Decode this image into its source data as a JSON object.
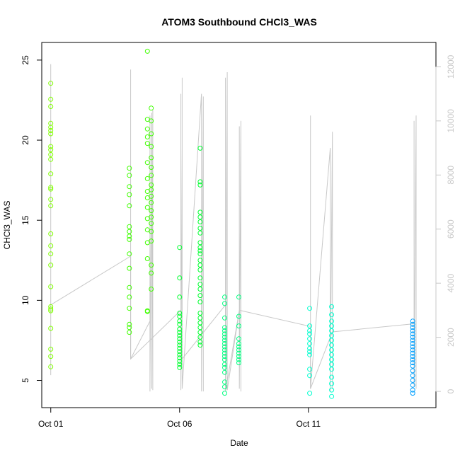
{
  "chart_data": {
    "type": "scatter",
    "title": "ATOM3 Southbound CHCl3_WAS",
    "xlabel": "Date",
    "ylabel": "CHCl3_WAS",
    "x_ticks": [
      {
        "day": 1,
        "label": "Oct 01"
      },
      {
        "day": 6,
        "label": "Oct 06"
      },
      {
        "day": 11,
        "label": "Oct 11"
      }
    ],
    "xlim_day": [
      0.65,
      15.95
    ],
    "ylim": [
      3.3,
      26.1
    ],
    "y_ticks": [
      5,
      10,
      15,
      20,
      25
    ],
    "y2_label": "",
    "y2_ticks": [
      0,
      2000,
      4000,
      6000,
      8000,
      10000,
      12000
    ],
    "y2lim": [
      -600,
      12900
    ],
    "y2_color": "#c8c8c8",
    "color_note": "points colored by date, yellow-green to blue",
    "series": [
      {
        "color": "#80ff00",
        "points": [
          [
            1.0,
            23.55
          ],
          [
            1.0,
            22.55
          ],
          [
            1.0,
            22.1
          ],
          [
            1.0,
            21.05
          ],
          [
            1.0,
            20.8
          ],
          [
            1.0,
            20.6
          ],
          [
            1.0,
            20.4
          ],
          [
            1.0,
            19.6
          ],
          [
            1.0,
            19.4
          ],
          [
            1.0,
            19.1
          ],
          [
            1.0,
            18.8
          ],
          [
            1.0,
            17.9
          ],
          [
            1.0,
            17.05
          ],
          [
            1.0,
            16.95
          ],
          [
            1.0,
            16.3
          ],
          [
            1.0,
            15.9
          ],
          [
            1.0,
            14.15
          ],
          [
            1.0,
            13.4
          ],
          [
            1.0,
            12.9
          ],
          [
            1.0,
            12.2
          ],
          [
            1.0,
            10.85
          ],
          [
            1.0,
            9.6
          ],
          [
            1.0,
            9.45
          ],
          [
            1.0,
            9.35
          ],
          [
            1.0,
            8.25
          ],
          [
            1.0,
            6.95
          ],
          [
            1.0,
            6.5
          ],
          [
            1.0,
            5.85
          ]
        ],
        "path": [
          [
            1.0,
            600
          ],
          [
            1.0,
            11000
          ],
          [
            1.0,
            2400
          ],
          [
            1.0,
            9000
          ],
          [
            1.0,
            3200
          ],
          [
            1.0,
            5000
          ],
          [
            1.0,
            11800
          ],
          [
            1.0,
            5400
          ],
          [
            1.0,
            12100
          ],
          [
            1.0,
            3800
          ],
          [
            1.0,
            800
          ],
          [
            1.0,
            2200
          ]
        ]
      },
      {
        "color": "#40ff00",
        "points": [
          [
            4.05,
            18.25
          ],
          [
            4.05,
            17.8
          ],
          [
            4.05,
            17.1
          ],
          [
            4.05,
            16.6
          ],
          [
            4.05,
            15.9
          ],
          [
            4.05,
            14.6
          ],
          [
            4.05,
            14.3
          ],
          [
            4.05,
            14.0
          ],
          [
            4.05,
            13.8
          ],
          [
            4.05,
            12.9
          ],
          [
            4.05,
            12.0
          ],
          [
            4.05,
            10.8
          ],
          [
            4.05,
            10.2
          ],
          [
            4.05,
            9.5
          ],
          [
            4.05,
            8.3
          ],
          [
            4.05,
            8.0
          ],
          [
            4.05,
            8.5
          ],
          [
            4.75,
            25.55
          ],
          [
            4.75,
            21.3
          ],
          [
            4.75,
            20.7
          ],
          [
            4.75,
            20.2
          ],
          [
            4.75,
            19.8
          ],
          [
            4.75,
            18.6
          ],
          [
            4.75,
            17.6
          ],
          [
            4.75,
            16.8
          ],
          [
            4.75,
            16.4
          ],
          [
            4.75,
            15.8
          ],
          [
            4.75,
            15.1
          ],
          [
            4.75,
            14.4
          ],
          [
            4.75,
            13.6
          ],
          [
            4.75,
            12.6
          ],
          [
            4.75,
            9.35
          ],
          [
            4.75,
            9.3
          ],
          [
            4.9,
            22.0
          ],
          [
            4.9,
            21.2
          ],
          [
            4.9,
            20.4
          ],
          [
            4.9,
            19.6
          ],
          [
            4.9,
            18.9
          ],
          [
            4.9,
            18.3
          ],
          [
            4.9,
            17.8
          ],
          [
            4.9,
            17.2
          ],
          [
            4.9,
            16.9
          ],
          [
            4.9,
            16.5
          ],
          [
            4.9,
            16.1
          ],
          [
            4.9,
            15.6
          ],
          [
            4.9,
            15.2
          ],
          [
            4.9,
            14.8
          ],
          [
            4.9,
            14.3
          ],
          [
            4.9,
            13.7
          ],
          [
            4.9,
            12.2
          ],
          [
            4.9,
            11.7
          ],
          [
            4.9,
            10.7
          ]
        ],
        "path": [
          [
            4.1,
            2200
          ],
          [
            4.1,
            11900
          ],
          [
            4.1,
            1200
          ],
          [
            4.85,
            2600
          ],
          [
            4.85,
            10200
          ],
          [
            4.85,
            0
          ],
          [
            4.92,
            10300
          ],
          [
            4.92,
            100
          ],
          [
            4.96,
            10400
          ],
          [
            4.96,
            50
          ]
        ]
      },
      {
        "color": "#00ff30",
        "points": [
          [
            6.0,
            13.3
          ],
          [
            6.0,
            11.4
          ],
          [
            6.0,
            10.2
          ],
          [
            6.0,
            9.2
          ],
          [
            6.0,
            9.0
          ],
          [
            6.0,
            8.7
          ],
          [
            6.0,
            8.5
          ],
          [
            6.0,
            8.2
          ],
          [
            6.0,
            8.0
          ],
          [
            6.0,
            7.8
          ],
          [
            6.0,
            7.6
          ],
          [
            6.0,
            7.4
          ],
          [
            6.0,
            7.2
          ],
          [
            6.0,
            7.0
          ],
          [
            6.0,
            6.8
          ],
          [
            6.0,
            6.6
          ],
          [
            6.0,
            6.4
          ],
          [
            6.0,
            6.2
          ],
          [
            6.0,
            6.0
          ],
          [
            6.0,
            5.8
          ],
          [
            6.8,
            19.5
          ],
          [
            6.8,
            17.4
          ],
          [
            6.8,
            17.2
          ],
          [
            6.8,
            15.5
          ],
          [
            6.8,
            15.2
          ],
          [
            6.8,
            14.9
          ],
          [
            6.8,
            14.5
          ],
          [
            6.8,
            14.2
          ],
          [
            6.8,
            13.6
          ],
          [
            6.8,
            13.3
          ],
          [
            6.8,
            13.1
          ],
          [
            6.8,
            12.9
          ],
          [
            6.8,
            12.5
          ],
          [
            6.8,
            12.2
          ],
          [
            6.8,
            11.9
          ],
          [
            6.8,
            11.4
          ],
          [
            6.8,
            11.0
          ],
          [
            6.8,
            10.7
          ],
          [
            6.8,
            10.3
          ],
          [
            6.8,
            9.9
          ],
          [
            6.8,
            9.2
          ],
          [
            6.8,
            8.9
          ],
          [
            6.8,
            8.6
          ],
          [
            6.8,
            8.3
          ],
          [
            6.8,
            8.0
          ],
          [
            6.8,
            7.7
          ],
          [
            6.8,
            7.4
          ],
          [
            6.8,
            7.2
          ]
        ],
        "path": [
          [
            6.05,
            3000
          ],
          [
            6.05,
            11000
          ],
          [
            6.05,
            50
          ],
          [
            6.1,
            9000
          ],
          [
            6.1,
            11600
          ],
          [
            6.1,
            100
          ],
          [
            6.85,
            11000
          ],
          [
            6.85,
            0
          ],
          [
            6.92,
            10900
          ],
          [
            6.92,
            0
          ]
        ]
      },
      {
        "color": "#00ff80",
        "points": [
          [
            7.75,
            10.2
          ],
          [
            7.75,
            9.8
          ],
          [
            7.75,
            8.9
          ],
          [
            7.75,
            8.3
          ],
          [
            7.75,
            8.1
          ],
          [
            7.75,
            7.9
          ],
          [
            7.75,
            7.7
          ],
          [
            7.75,
            7.5
          ],
          [
            7.75,
            7.3
          ],
          [
            7.75,
            7.1
          ],
          [
            7.75,
            6.9
          ],
          [
            7.75,
            6.7
          ],
          [
            7.75,
            6.5
          ],
          [
            7.75,
            6.3
          ],
          [
            7.75,
            6.0
          ],
          [
            7.75,
            5.8
          ],
          [
            7.75,
            5.5
          ],
          [
            7.75,
            4.9
          ],
          [
            7.75,
            4.6
          ],
          [
            7.75,
            4.2
          ],
          [
            8.3,
            10.2
          ],
          [
            8.3,
            9.0
          ],
          [
            8.3,
            8.4
          ],
          [
            8.3,
            7.6
          ],
          [
            8.3,
            7.3
          ],
          [
            8.3,
            7.1
          ],
          [
            8.3,
            6.9
          ],
          [
            8.3,
            6.7
          ],
          [
            8.3,
            6.5
          ],
          [
            8.3,
            6.3
          ],
          [
            8.3,
            6.1
          ]
        ],
        "path": [
          [
            7.78,
            3200
          ],
          [
            7.78,
            11600
          ],
          [
            7.78,
            0
          ],
          [
            7.85,
            11800
          ],
          [
            7.85,
            50
          ],
          [
            8.32,
            3000
          ],
          [
            8.32,
            9800
          ],
          [
            8.32,
            100
          ],
          [
            8.38,
            10000
          ],
          [
            8.38,
            0
          ]
        ]
      },
      {
        "color": "#00ffd0",
        "points": [
          [
            11.05,
            9.5
          ],
          [
            11.05,
            8.4
          ],
          [
            11.05,
            8.1
          ],
          [
            11.05,
            7.9
          ],
          [
            11.05,
            7.6
          ],
          [
            11.05,
            7.3
          ],
          [
            11.05,
            7.0
          ],
          [
            11.05,
            6.8
          ],
          [
            11.05,
            6.6
          ],
          [
            11.05,
            5.7
          ],
          [
            11.05,
            5.3
          ],
          [
            11.05,
            4.2
          ],
          [
            11.9,
            9.6
          ],
          [
            11.9,
            9.1
          ],
          [
            11.9,
            8.7
          ],
          [
            11.9,
            8.4
          ],
          [
            11.9,
            8.1
          ],
          [
            11.9,
            7.8
          ],
          [
            11.9,
            7.5
          ],
          [
            11.9,
            7.2
          ],
          [
            11.9,
            6.9
          ],
          [
            11.9,
            6.6
          ],
          [
            11.9,
            6.3
          ],
          [
            11.9,
            6.0
          ],
          [
            11.9,
            5.7
          ],
          [
            11.9,
            5.2
          ],
          [
            11.9,
            4.8
          ],
          [
            11.9,
            4.4
          ],
          [
            11.9,
            4.0
          ]
        ],
        "path": [
          [
            11.08,
            2400
          ],
          [
            11.08,
            10200
          ],
          [
            11.08,
            100
          ],
          [
            11.85,
            9000
          ],
          [
            11.85,
            0
          ],
          [
            11.93,
            9600
          ],
          [
            11.93,
            80
          ]
        ]
      },
      {
        "color": "#00a0ff",
        "points": [
          [
            15.05,
            8.7
          ],
          [
            15.05,
            8.5
          ],
          [
            15.05,
            8.3
          ],
          [
            15.05,
            8.1
          ],
          [
            15.05,
            7.9
          ],
          [
            15.05,
            7.7
          ],
          [
            15.05,
            7.5
          ],
          [
            15.05,
            7.3
          ],
          [
            15.05,
            7.1
          ],
          [
            15.05,
            6.9
          ],
          [
            15.05,
            6.7
          ],
          [
            15.05,
            6.5
          ],
          [
            15.05,
            6.3
          ],
          [
            15.05,
            6.1
          ],
          [
            15.05,
            5.9
          ],
          [
            15.05,
            5.6
          ],
          [
            15.05,
            5.3
          ],
          [
            15.05,
            5.0
          ],
          [
            15.05,
            4.7
          ],
          [
            15.05,
            4.4
          ],
          [
            15.05,
            4.2
          ]
        ],
        "path": [
          [
            15.1,
            2500
          ],
          [
            15.1,
            10000
          ],
          [
            15.1,
            200
          ],
          [
            15.18,
            10200
          ],
          [
            15.18,
            100
          ]
        ]
      }
    ],
    "connector": [
      [
        1.0,
        3200
      ],
      [
        4.1,
        5000
      ],
      [
        4.1,
        1200
      ],
      [
        6.05,
        3000
      ],
      [
        6.1,
        1200
      ],
      [
        7.78,
        3200
      ],
      [
        7.78,
        0
      ],
      [
        8.32,
        3000
      ],
      [
        11.08,
        2400
      ],
      [
        11.08,
        100
      ],
      [
        11.93,
        2200
      ],
      [
        15.1,
        2500
      ]
    ]
  }
}
